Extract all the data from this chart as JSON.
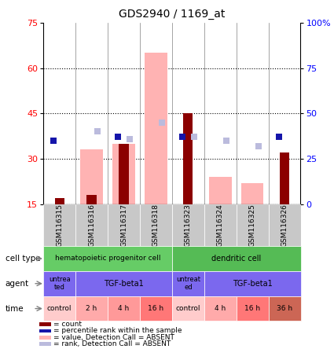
{
  "title": "GDS2940 / 1169_at",
  "samples": [
    "GSM116315",
    "GSM116316",
    "GSM116317",
    "GSM116318",
    "GSM116323",
    "GSM116324",
    "GSM116325",
    "GSM116326"
  ],
  "count_values": [
    17,
    18,
    35,
    14,
    45,
    14,
    14,
    32
  ],
  "value_absent": [
    0,
    33,
    35,
    65,
    0,
    24,
    22,
    0
  ],
  "pct_rank": [
    35,
    40,
    37,
    46,
    37,
    36,
    33,
    37
  ],
  "rank_absent": [
    0,
    40,
    36,
    45,
    37,
    35,
    32,
    0
  ],
  "has_value_absent": [
    false,
    true,
    true,
    true,
    false,
    true,
    true,
    false
  ],
  "has_rank_absent": [
    false,
    true,
    true,
    true,
    true,
    true,
    true,
    false
  ],
  "has_pct_rank": [
    true,
    false,
    true,
    false,
    true,
    false,
    false,
    true
  ],
  "left_yticks": [
    15,
    30,
    45,
    60,
    75
  ],
  "right_yticks": [
    0,
    25,
    50,
    75,
    100
  ],
  "right_ytick_labels": [
    "0",
    "25",
    "50",
    "75",
    "100%"
  ],
  "ylim_left": [
    15,
    75
  ],
  "ylim_right": [
    0,
    100
  ],
  "color_count": "#8B0000",
  "color_pct_rank": "#1515AA",
  "color_value_absent": "#FFB3B3",
  "color_rank_absent": "#BBBBDD",
  "color_cell_type_hema": "#66CC66",
  "color_cell_type_dendrite": "#55BB55",
  "color_agent_purple": "#7B68EE",
  "color_gsm_bg": "#C8C8C8",
  "time_labels": [
    "control",
    "2 h",
    "4 h",
    "16 h",
    "control",
    "4 h",
    "16 h",
    "36 h"
  ],
  "time_colors": [
    "#FFCCCC",
    "#FFAAAA",
    "#FF9999",
    "#FF7777",
    "#FFCCCC",
    "#FFAAAA",
    "#FF7777",
    "#CC6655"
  ]
}
